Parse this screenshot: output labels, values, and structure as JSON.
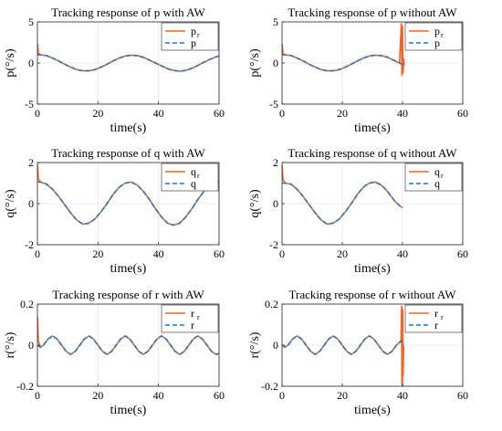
{
  "colors": {
    "reference": "#E8672A",
    "response": "#1F77C4",
    "grid": "#E6E6E6",
    "axis": "#262626"
  },
  "chart_data": [
    {
      "type": "line",
      "title": "Tracking response of p with AW",
      "xlabel": "time(s)",
      "ylabel": "p(°/s)",
      "xlim": [
        0,
        60
      ],
      "ylim": [
        -5,
        5
      ],
      "xticks": [
        "0",
        "20",
        "40",
        "60"
      ],
      "yticks": [
        "-5",
        "0",
        "5"
      ],
      "grid": true,
      "legend": {
        "placement": "top-right",
        "entries": [
          {
            "label": "p",
            "sub": "r",
            "style": "solid"
          },
          {
            "label": "p",
            "sub": "",
            "style": "dashed"
          }
        ]
      },
      "series": [
        {
          "name": "p_r",
          "x": [
            0,
            0.3,
            1,
            3,
            5,
            7,
            9,
            11,
            13,
            15,
            17,
            19,
            21,
            23,
            25,
            27,
            29,
            31,
            33,
            35,
            37,
            39,
            41,
            43,
            45,
            47,
            49,
            51,
            53,
            55,
            57,
            59,
            60
          ],
          "y": [
            2.4,
            1.2,
            1.0,
            0.9,
            0.6,
            0.25,
            -0.15,
            -0.5,
            -0.8,
            -0.95,
            -0.95,
            -0.8,
            -0.5,
            -0.15,
            0.25,
            0.6,
            0.85,
            0.95,
            0.9,
            0.7,
            0.35,
            0,
            -0.35,
            -0.7,
            -0.9,
            -1.0,
            -0.9,
            -0.65,
            -0.3,
            0.1,
            0.45,
            0.75,
            0.85
          ]
        },
        {
          "name": "p",
          "x": [
            0,
            1,
            3,
            5,
            7,
            9,
            11,
            13,
            15,
            17,
            19,
            21,
            23,
            25,
            27,
            29,
            31,
            33,
            35,
            37,
            39,
            41,
            43,
            45,
            47,
            49,
            51,
            53,
            55,
            57,
            59,
            60
          ],
          "y": [
            1.0,
            1.0,
            0.9,
            0.6,
            0.25,
            -0.15,
            -0.5,
            -0.8,
            -0.95,
            -0.95,
            -0.8,
            -0.5,
            -0.15,
            0.25,
            0.6,
            0.85,
            0.95,
            0.9,
            0.7,
            0.35,
            0,
            -0.35,
            -0.7,
            -0.9,
            -1.0,
            -0.9,
            -0.65,
            -0.3,
            0.1,
            0.45,
            0.75,
            0.85
          ]
        }
      ]
    },
    {
      "type": "line",
      "title": "Tracking response of p without AW",
      "xlabel": "time(s)",
      "ylabel": "p(°/s)",
      "xlim": [
        0,
        60
      ],
      "ylim": [
        -5,
        5
      ],
      "xticks": [
        "0",
        "20",
        "40",
        "60"
      ],
      "yticks": [
        "-5",
        "0",
        "5"
      ],
      "grid": true,
      "legend": {
        "placement": "top-right",
        "entries": [
          {
            "label": "p",
            "sub": "r",
            "style": "solid"
          },
          {
            "label": "p",
            "sub": "",
            "style": "dashed"
          }
        ]
      },
      "series": [
        {
          "name": "p_r",
          "x": [
            0,
            0.3,
            1,
            3,
            5,
            7,
            9,
            11,
            13,
            15,
            17,
            19,
            21,
            23,
            25,
            27,
            29,
            31,
            33,
            35,
            37,
            39,
            39.6,
            39.8,
            40,
            40.2,
            40.4,
            40.6
          ],
          "y": [
            2.4,
            1.2,
            1.0,
            0.9,
            0.6,
            0.25,
            -0.15,
            -0.5,
            -0.8,
            -0.95,
            -0.95,
            -0.8,
            -0.5,
            -0.15,
            0.25,
            0.6,
            0.85,
            0.95,
            0.9,
            0.7,
            0.35,
            0,
            4.8,
            -1.5,
            4.5,
            -1.2,
            0.5,
            -0.3
          ]
        },
        {
          "name": "p",
          "x": [
            0,
            1,
            3,
            5,
            7,
            9,
            11,
            13,
            15,
            17,
            19,
            21,
            23,
            25,
            27,
            29,
            31,
            33,
            35,
            37,
            39,
            40
          ],
          "y": [
            1.0,
            1.0,
            0.9,
            0.6,
            0.25,
            -0.15,
            -0.5,
            -0.8,
            -0.95,
            -0.95,
            -0.8,
            -0.5,
            -0.15,
            0.25,
            0.6,
            0.85,
            0.95,
            0.9,
            0.7,
            0.35,
            0,
            -0.2
          ]
        }
      ]
    },
    {
      "type": "line",
      "title": "Tracking response of q with AW",
      "xlabel": "time(s)",
      "ylabel": "q(°/s)",
      "xlim": [
        0,
        60
      ],
      "ylim": [
        -2,
        2
      ],
      "xticks": [
        "0",
        "20",
        "40",
        "60"
      ],
      "yticks": [
        "-2",
        "0",
        "2"
      ],
      "grid": true,
      "legend": {
        "placement": "top-right",
        "entries": [
          {
            "label": "q",
            "sub": "r",
            "style": "solid"
          },
          {
            "label": "q",
            "sub": "",
            "style": "dashed"
          }
        ]
      },
      "series": [
        {
          "name": "q_r",
          "x": [
            0,
            0.3,
            1,
            3,
            5,
            7,
            9,
            11,
            13,
            15,
            17,
            19,
            21,
            23,
            25,
            27,
            29,
            31,
            33,
            35,
            37,
            39,
            41,
            43,
            45,
            47,
            49,
            51,
            53,
            55,
            57,
            59,
            60
          ],
          "y": [
            1.9,
            1.2,
            1.05,
            0.95,
            0.7,
            0.35,
            -0.05,
            -0.45,
            -0.8,
            -1.0,
            -0.95,
            -0.75,
            -0.4,
            0,
            0.45,
            0.8,
            1.0,
            1.05,
            0.9,
            0.6,
            0.2,
            -0.25,
            -0.65,
            -0.95,
            -1.05,
            -0.95,
            -0.65,
            -0.25,
            0.2,
            0.6,
            0.9,
            1.05,
            1.05
          ]
        },
        {
          "name": "q",
          "x": [
            0,
            1,
            3,
            5,
            7,
            9,
            11,
            13,
            15,
            17,
            19,
            21,
            23,
            25,
            27,
            29,
            31,
            33,
            35,
            37,
            39,
            41,
            43,
            45,
            47,
            49,
            51,
            53,
            55,
            57,
            59,
            60
          ],
          "y": [
            1.05,
            1.05,
            0.95,
            0.7,
            0.35,
            -0.05,
            -0.45,
            -0.8,
            -1.0,
            -0.95,
            -0.75,
            -0.4,
            0,
            0.45,
            0.8,
            1.0,
            1.05,
            0.9,
            0.6,
            0.2,
            -0.25,
            -0.65,
            -0.95,
            -1.05,
            -0.95,
            -0.65,
            -0.25,
            0.2,
            0.6,
            0.9,
            1.05,
            1.05
          ]
        }
      ]
    },
    {
      "type": "line",
      "title": "Tracking response of q without AW",
      "xlabel": "time(s)",
      "ylabel": "q(°/s)",
      "xlim": [
        0,
        60
      ],
      "ylim": [
        -2,
        2
      ],
      "xticks": [
        "0",
        "20",
        "40",
        "60"
      ],
      "yticks": [
        "-2",
        "0",
        "2"
      ],
      "grid": true,
      "legend": {
        "placement": "top-right",
        "entries": [
          {
            "label": "q",
            "sub": "r",
            "style": "solid"
          },
          {
            "label": "q",
            "sub": "",
            "style": "dashed"
          }
        ]
      },
      "series": [
        {
          "name": "q_r",
          "x": [
            0,
            0.3,
            1,
            3,
            5,
            7,
            9,
            11,
            13,
            15,
            17,
            19,
            21,
            23,
            25,
            27,
            29,
            31,
            33,
            35,
            37,
            39,
            40
          ],
          "y": [
            1.9,
            1.2,
            1.0,
            0.95,
            0.7,
            0.35,
            -0.05,
            -0.45,
            -0.8,
            -1.0,
            -0.95,
            -0.75,
            -0.4,
            0,
            0.45,
            0.8,
            1.0,
            1.05,
            0.9,
            0.6,
            0.2,
            -0.1,
            -0.2
          ]
        },
        {
          "name": "q",
          "x": [
            0,
            1,
            3,
            5,
            7,
            9,
            11,
            13,
            15,
            17,
            19,
            21,
            23,
            25,
            27,
            29,
            31,
            33,
            35,
            37,
            39,
            40
          ],
          "y": [
            1.0,
            1.0,
            0.95,
            0.7,
            0.35,
            -0.05,
            -0.45,
            -0.8,
            -1.0,
            -0.95,
            -0.75,
            -0.4,
            0,
            0.45,
            0.8,
            1.0,
            1.05,
            0.9,
            0.6,
            0.2,
            -0.1,
            -0.2
          ]
        }
      ]
    },
    {
      "type": "line",
      "title": "Tracking response of r with AW",
      "xlabel": "time(s)",
      "ylabel": "r(°/s)",
      "xlim": [
        0,
        60
      ],
      "ylim": [
        -0.2,
        0.2
      ],
      "xticks": [
        "0",
        "20",
        "40",
        "60"
      ],
      "yticks": [
        "-0.2",
        "0",
        "0.2"
      ],
      "grid": true,
      "legend": {
        "placement": "top-right",
        "entries": [
          {
            "label": "r",
            "sub": "r",
            "style": "solid"
          },
          {
            "label": "r",
            "sub": "",
            "style": "dashed"
          }
        ]
      },
      "series": [
        {
          "name": "r_r",
          "x": [
            0,
            0.3,
            1,
            2,
            3.5,
            5,
            6.5,
            8,
            9.5,
            11,
            12.5,
            14,
            15.5,
            17,
            18.5,
            20,
            21.5,
            23,
            24.5,
            26,
            27.5,
            29,
            30.5,
            32,
            33.5,
            35,
            36.5,
            38,
            39.5,
            41,
            42.5,
            44,
            45.5,
            47,
            48.5,
            50,
            51.5,
            53,
            54.5,
            56,
            57.5,
            59,
            60
          ],
          "y": [
            0.14,
            0.02,
            -0.01,
            0,
            0.03,
            0.045,
            0.03,
            0,
            -0.03,
            -0.045,
            -0.03,
            0,
            0.03,
            0.045,
            0.03,
            0,
            -0.03,
            -0.045,
            -0.03,
            0,
            0.03,
            0.045,
            0.03,
            0,
            -0.03,
            -0.045,
            -0.03,
            0,
            0.03,
            0.045,
            0.03,
            0,
            -0.03,
            -0.045,
            -0.03,
            0,
            0.03,
            0.045,
            0.03,
            0,
            -0.03,
            -0.045,
            -0.04
          ]
        },
        {
          "name": "r",
          "x": [
            0,
            1,
            2,
            3.5,
            5,
            6.5,
            8,
            9.5,
            11,
            12.5,
            14,
            15.5,
            17,
            18.5,
            20,
            21.5,
            23,
            24.5,
            26,
            27.5,
            29,
            30.5,
            32,
            33.5,
            35,
            36.5,
            38,
            39.5,
            41,
            42.5,
            44,
            45.5,
            47,
            48.5,
            50,
            51.5,
            53,
            54.5,
            56,
            57.5,
            59,
            60
          ],
          "y": [
            0,
            -0.01,
            0,
            0.03,
            0.045,
            0.03,
            0,
            -0.03,
            -0.045,
            -0.03,
            0,
            0.03,
            0.045,
            0.03,
            0,
            -0.03,
            -0.045,
            -0.03,
            0,
            0.03,
            0.045,
            0.03,
            0,
            -0.03,
            -0.045,
            -0.03,
            0,
            0.03,
            0.045,
            0.03,
            0,
            -0.03,
            -0.045,
            -0.03,
            0,
            0.03,
            0.045,
            0.03,
            0,
            -0.03,
            -0.045,
            -0.04
          ]
        }
      ]
    },
    {
      "type": "line",
      "title": "Tracking response of r without AW",
      "xlabel": "time(s)",
      "ylabel": "r(°/s)",
      "xlim": [
        0,
        60
      ],
      "ylim": [
        -0.2,
        0.2
      ],
      "xticks": [
        "0",
        "20",
        "40",
        "60"
      ],
      "yticks": [
        "-0.2",
        "0",
        "0.2"
      ],
      "grid": true,
      "legend": {
        "placement": "top-right",
        "entries": [
          {
            "label": "r",
            "sub": "r",
            "style": "solid"
          },
          {
            "label": "r",
            "sub": "",
            "style": "dashed"
          }
        ]
      },
      "series": [
        {
          "name": "r_r",
          "x": [
            0,
            1,
            2,
            3.5,
            5,
            6.5,
            8,
            9.5,
            11,
            12.5,
            14,
            15.5,
            17,
            18.5,
            20,
            21.5,
            23,
            24.5,
            26,
            27.5,
            29,
            30.5,
            32,
            33.5,
            35,
            36.5,
            38,
            39.5,
            39.7,
            39.8,
            39.9,
            40,
            40.1,
            40.2,
            40.4
          ],
          "y": [
            0,
            -0.01,
            0,
            0.03,
            0.045,
            0.03,
            0,
            -0.03,
            -0.045,
            -0.03,
            0,
            0.03,
            0.045,
            0.03,
            0,
            -0.03,
            -0.045,
            -0.03,
            0,
            0.03,
            0.045,
            0.03,
            0,
            -0.03,
            -0.045,
            -0.03,
            0,
            0.02,
            0.19,
            -0.19,
            0.18,
            -0.2,
            0.17,
            -0.15,
            0
          ]
        },
        {
          "name": "r",
          "x": [
            0,
            1,
            2,
            3.5,
            5,
            6.5,
            8,
            9.5,
            11,
            12.5,
            14,
            15.5,
            17,
            18.5,
            20,
            21.5,
            23,
            24.5,
            26,
            27.5,
            29,
            30.5,
            32,
            33.5,
            35,
            36.5,
            38,
            39.5,
            40
          ],
          "y": [
            0,
            -0.01,
            0,
            0.03,
            0.045,
            0.03,
            0,
            -0.03,
            -0.045,
            -0.03,
            0,
            0.03,
            0.045,
            0.03,
            0,
            -0.03,
            -0.045,
            -0.03,
            0,
            0.03,
            0.045,
            0.03,
            0,
            -0.03,
            -0.045,
            -0.03,
            0,
            0.02,
            0.01
          ]
        }
      ]
    }
  ]
}
